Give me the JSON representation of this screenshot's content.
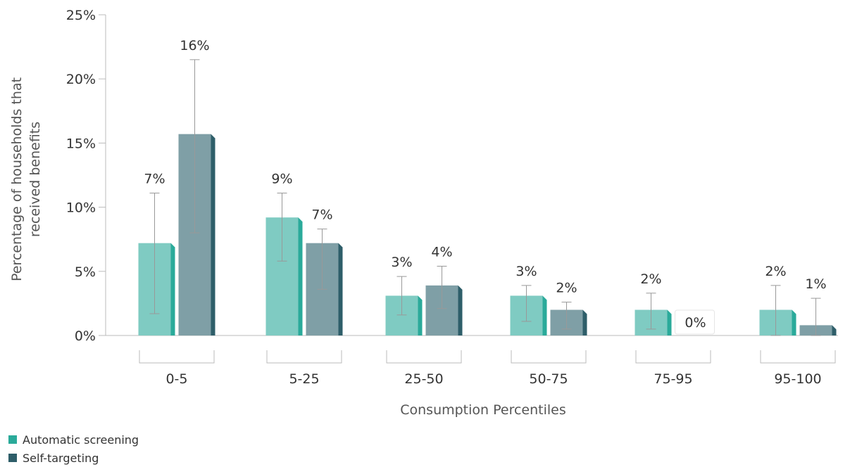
{
  "chart_data": {
    "type": "bar",
    "title": "",
    "xlabel": "Consumption Percentiles",
    "ylabel_lines": [
      "Percentage of households that",
      "received benefits"
    ],
    "ylim": [
      0,
      25
    ],
    "yticks": [
      0,
      5,
      10,
      15,
      20,
      25
    ],
    "ytick_labels": [
      "0%",
      "5%",
      "10%",
      "15%",
      "20%",
      "25%"
    ],
    "grid": false,
    "legend_position": "bottom-left",
    "categories": [
      "0-5",
      "5-25",
      "25-50",
      "50-75",
      "75-95",
      "95-100"
    ],
    "series": [
      {
        "name": "Automatic screening",
        "color": "#7fcbc2",
        "side_color": "#2aaa9a",
        "values": [
          7.2,
          9.2,
          3.1,
          3.1,
          2.0,
          2.0
        ],
        "labels": [
          "7%",
          "9%",
          "3%",
          "3%",
          "2%",
          "2%"
        ],
        "error_low": [
          1.7,
          5.8,
          1.6,
          1.1,
          0.5,
          0.0
        ],
        "error_high": [
          11.1,
          11.1,
          4.6,
          3.9,
          3.3,
          3.9
        ]
      },
      {
        "name": "Self-targeting",
        "color": "#7f9fa6",
        "side_color": "#2e5e69",
        "values": [
          15.7,
          7.2,
          3.9,
          2.0,
          0.0,
          0.8
        ],
        "labels": [
          "16%",
          "7%",
          "4%",
          "2%",
          "0%",
          "1%"
        ],
        "error_low": [
          8.0,
          3.6,
          2.1,
          0.5,
          null,
          0.0
        ],
        "error_high": [
          21.5,
          8.3,
          5.4,
          2.6,
          null,
          2.9
        ]
      }
    ]
  },
  "legend": {
    "items": [
      {
        "label": "Automatic screening",
        "color": "#2aaa9a"
      },
      {
        "label": "Self-targeting",
        "color": "#2e5e69"
      }
    ]
  }
}
